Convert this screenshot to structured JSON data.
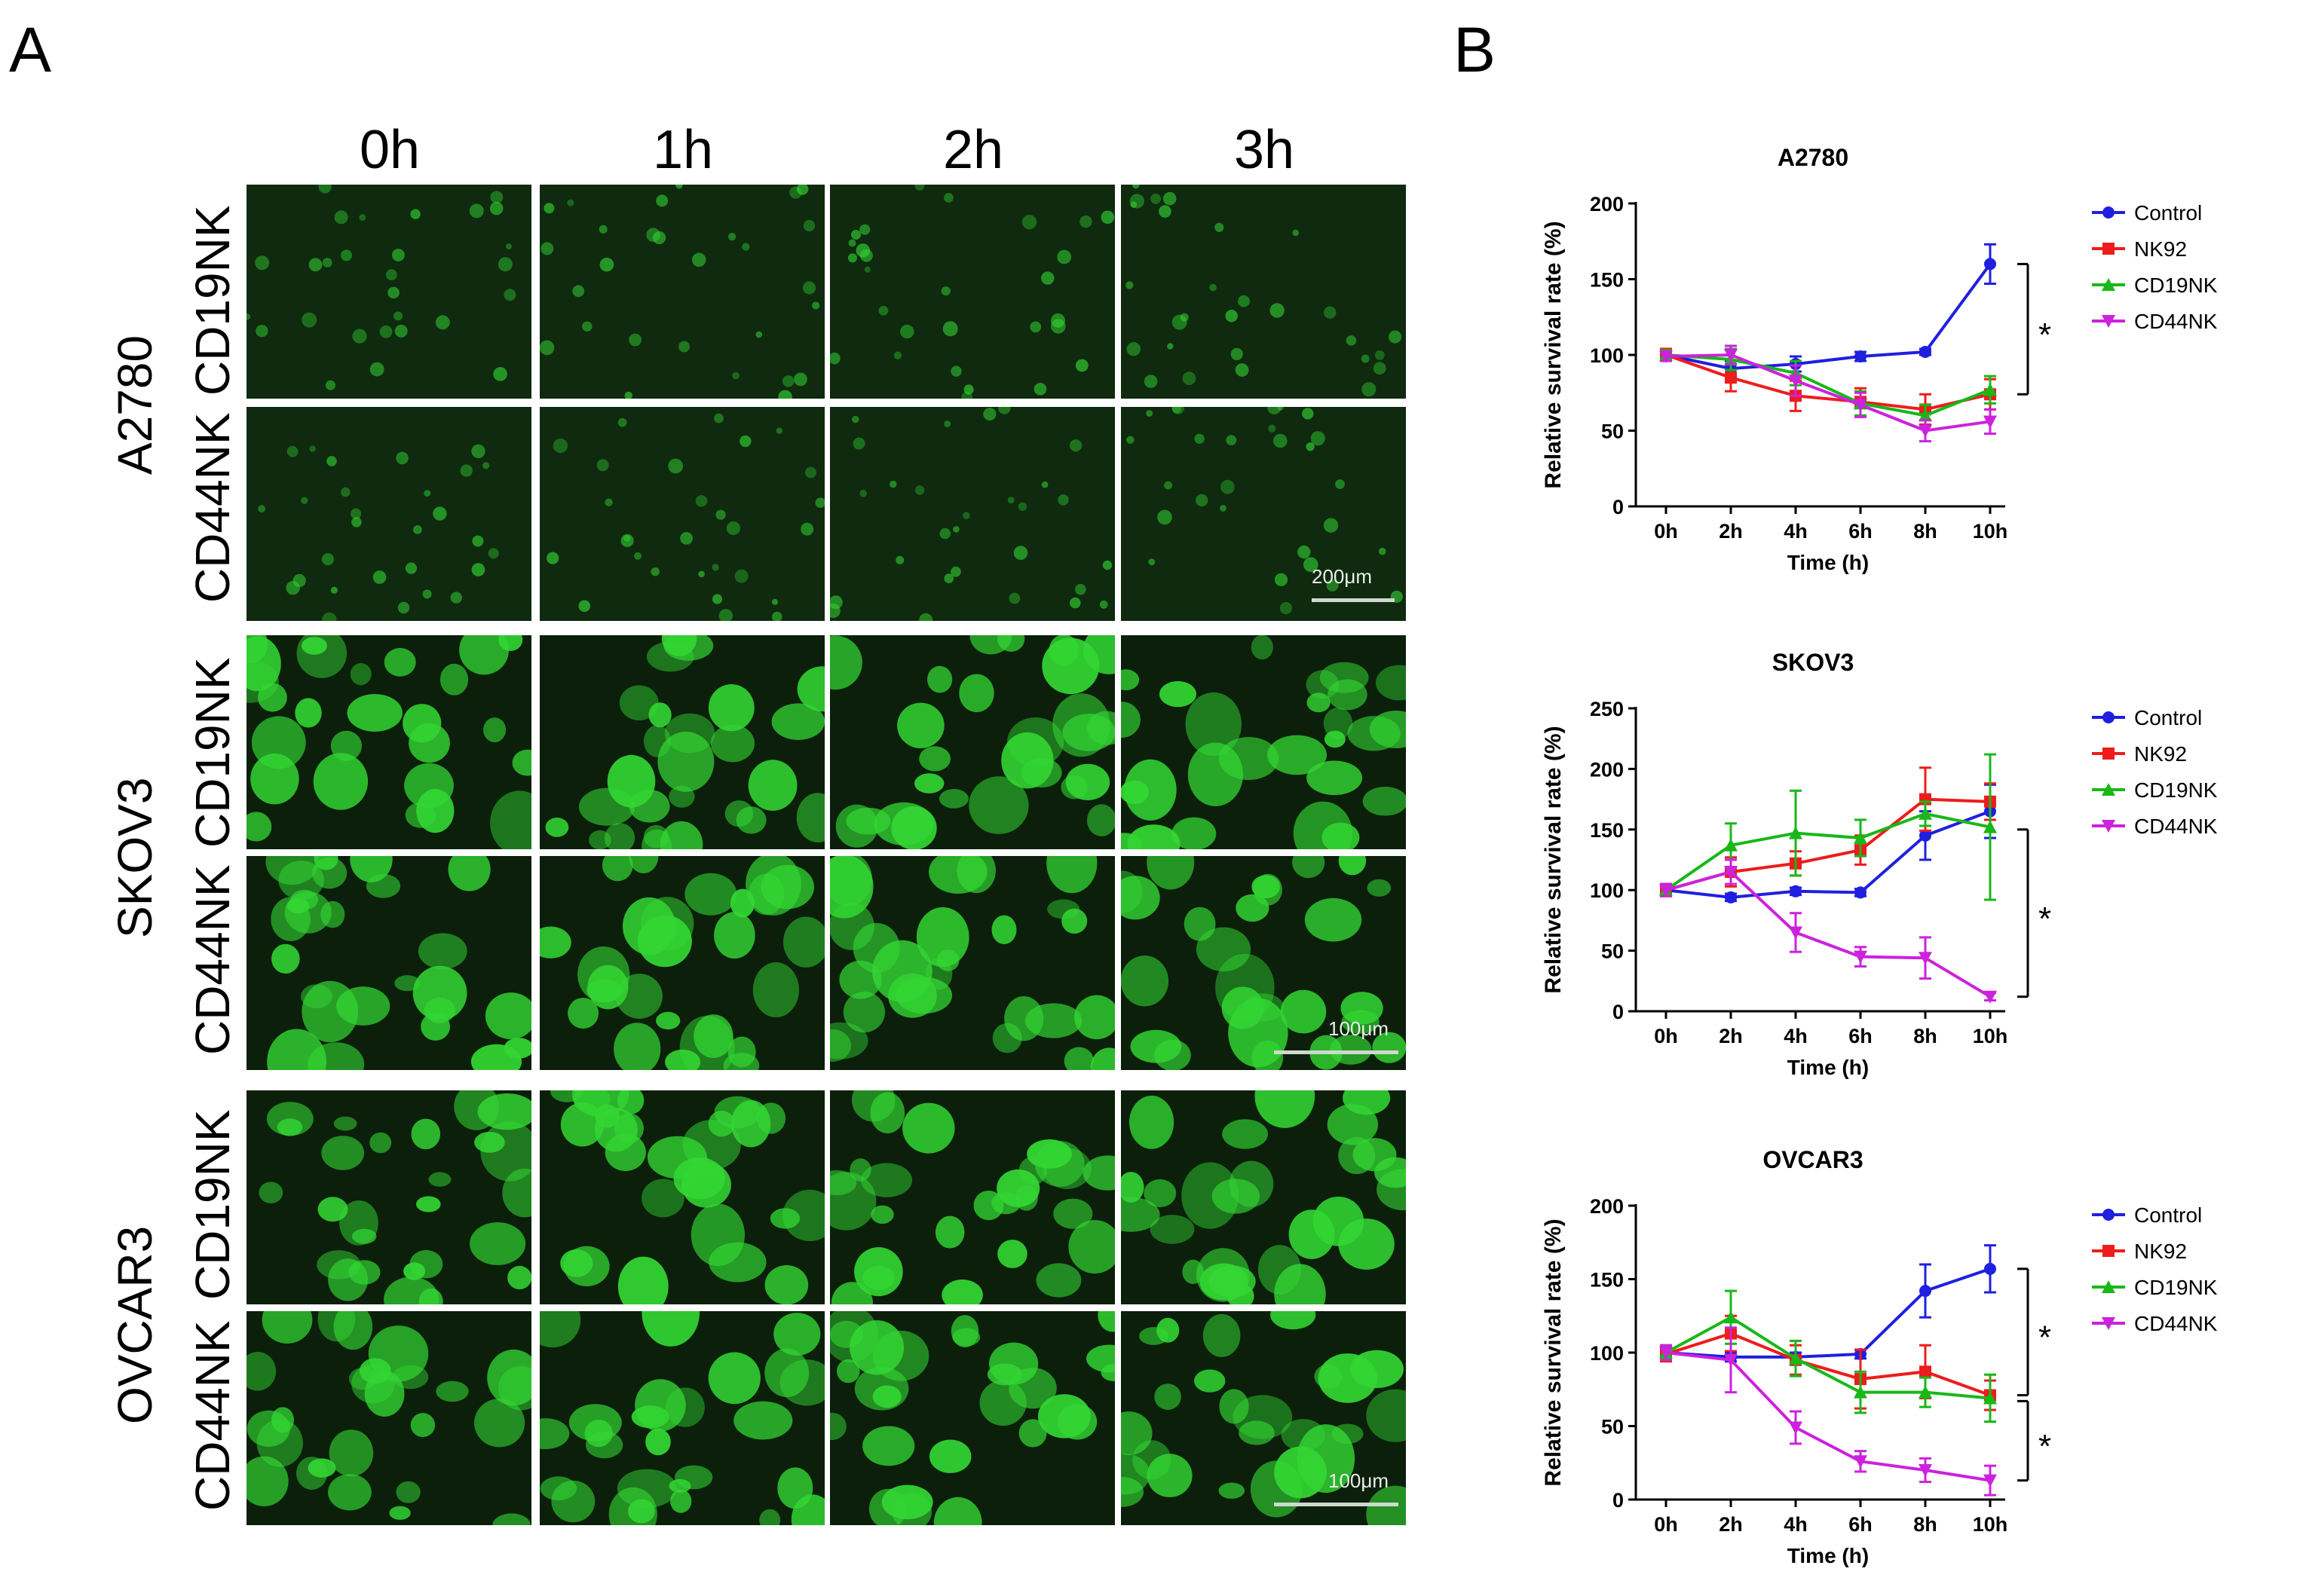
{
  "figure": {
    "panel_a_label": "A",
    "panel_b_label": "B",
    "time_headers": [
      "0h",
      "1h",
      "2h",
      "3h"
    ],
    "cell_lines": [
      "A2780",
      "SKOV3",
      "OVCAR3"
    ],
    "row_labels": [
      "CD19NK",
      "CD44NK"
    ],
    "scale_bars": [
      "200μm",
      "100μm",
      "100μm"
    ]
  },
  "colors": {
    "micrograph_background": "#0b1f0b",
    "cell_green": "#33d633",
    "control": "#1f1fe0",
    "nk92": "#ee1c1c",
    "cd19nk": "#18b818",
    "cd44nk": "#cc22dd"
  },
  "chart_data": [
    {
      "type": "line",
      "title": "A2780",
      "xlabel": "Time (h)",
      "ylabel": "Relative survival rate (%)",
      "categories": [
        "0h",
        "2h",
        "4h",
        "6h",
        "8h",
        "10h"
      ],
      "ylim": [
        0,
        200
      ],
      "yticks": [
        0,
        50,
        100,
        150,
        200
      ],
      "legend_position": "right",
      "series": [
        {
          "name": "Control",
          "color": "#1f1fe0",
          "marker": "circle",
          "values": [
            100,
            91,
            94,
            99,
            102,
            160
          ],
          "errors": [
            3,
            5,
            5,
            3,
            2,
            13
          ]
        },
        {
          "name": "NK92",
          "color": "#ee1c1c",
          "marker": "square",
          "values": [
            100,
            85,
            73,
            69,
            64,
            74
          ],
          "errors": [
            4,
            9,
            10,
            9,
            10,
            10
          ]
        },
        {
          "name": "CD19NK",
          "color": "#18b818",
          "marker": "triangle-up",
          "values": [
            100,
            97,
            88,
            68,
            60,
            77
          ],
          "errors": [
            3,
            7,
            8,
            8,
            7,
            9
          ]
        },
        {
          "name": "CD44NK",
          "color": "#cc22dd",
          "marker": "triangle-down",
          "values": [
            99,
            100,
            83,
            67,
            50,
            56
          ],
          "errors": [
            3,
            6,
            10,
            8,
            7,
            8
          ]
        }
      ],
      "annotations": [
        {
          "text": "*",
          "from": 160,
          "to": 74
        }
      ]
    },
    {
      "type": "line",
      "title": "SKOV3",
      "xlabel": "Time (h)",
      "ylabel": "Relative survival rate (%)",
      "categories": [
        "0h",
        "2h",
        "4h",
        "6h",
        "8h",
        "10h"
      ],
      "ylim": [
        0,
        250
      ],
      "yticks": [
        0,
        50,
        100,
        150,
        200,
        250
      ],
      "legend_position": "right",
      "series": [
        {
          "name": "Control",
          "color": "#1f1fe0",
          "marker": "circle",
          "values": [
            100,
            94,
            99,
            98,
            145,
            165
          ],
          "errors": [
            3,
            3,
            3,
            3,
            20,
            22
          ]
        },
        {
          "name": "NK92",
          "color": "#ee1c1c",
          "marker": "square",
          "values": [
            100,
            115,
            122,
            133,
            175,
            173
          ],
          "errors": [
            5,
            12,
            10,
            12,
            26,
            15
          ]
        },
        {
          "name": "CD19NK",
          "color": "#18b818",
          "marker": "triangle-up",
          "values": [
            100,
            137,
            147,
            143,
            163,
            152
          ],
          "errors": [
            5,
            18,
            35,
            15,
            10,
            60
          ]
        },
        {
          "name": "CD44NK",
          "color": "#cc22dd",
          "marker": "triangle-down",
          "values": [
            100,
            115,
            65,
            45,
            44,
            12
          ],
          "errors": [
            5,
            10,
            16,
            8,
            17,
            3
          ]
        }
      ],
      "annotations": [
        {
          "text": "*",
          "from": 150,
          "to": 12
        }
      ]
    },
    {
      "type": "line",
      "title": "OVCAR3",
      "xlabel": "Time (h)",
      "ylabel": "Relative survival rate (%)",
      "categories": [
        "0h",
        "2h",
        "4h",
        "6h",
        "8h",
        "10h"
      ],
      "ylim": [
        0,
        200
      ],
      "yticks": [
        0,
        50,
        100,
        150,
        200
      ],
      "legend_position": "right",
      "series": [
        {
          "name": "Control",
          "color": "#1f1fe0",
          "marker": "circle",
          "values": [
            100,
            97,
            97,
            99,
            142,
            157
          ],
          "errors": [
            3,
            3,
            3,
            3,
            18,
            16
          ]
        },
        {
          "name": "NK92",
          "color": "#ee1c1c",
          "marker": "square",
          "values": [
            99,
            113,
            95,
            82,
            87,
            71
          ],
          "errors": [
            5,
            12,
            10,
            20,
            18,
            10
          ]
        },
        {
          "name": "CD19NK",
          "color": "#18b818",
          "marker": "triangle-up",
          "values": [
            100,
            124,
            96,
            73,
            73,
            69
          ],
          "errors": [
            5,
            18,
            12,
            14,
            10,
            16
          ]
        },
        {
          "name": "CD44NK",
          "color": "#cc22dd",
          "marker": "triangle-down",
          "values": [
            100,
            95,
            49,
            26,
            20,
            13
          ],
          "errors": [
            5,
            22,
            11,
            7,
            8,
            10
          ]
        }
      ],
      "annotations": [
        {
          "text": "*",
          "from": 157,
          "to": 71
        },
        {
          "text": "*",
          "from": 67,
          "to": 13
        }
      ]
    }
  ]
}
